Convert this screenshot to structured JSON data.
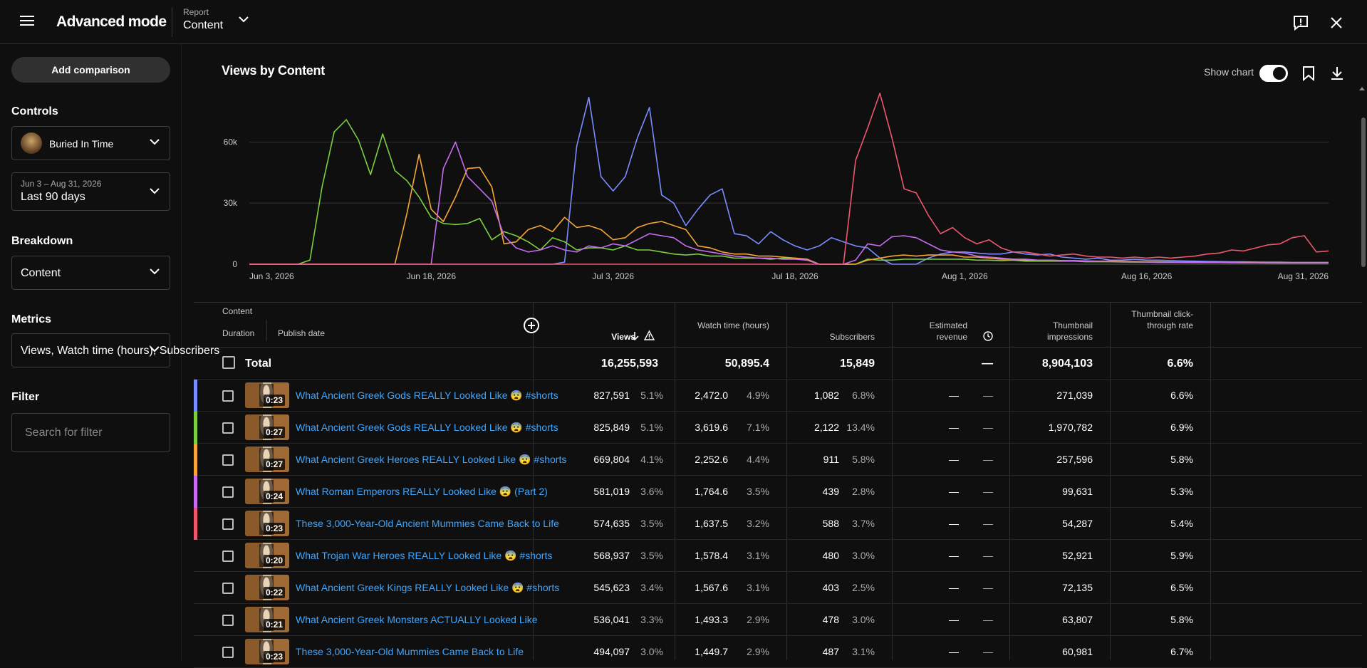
{
  "header": {
    "app_title": "Advanced mode",
    "report_label": "Report",
    "report_value": "Content"
  },
  "sidebar": {
    "add_comparison": "Add comparison",
    "controls_heading": "Controls",
    "channel": "Buried In Time",
    "date_range_small": "Jun 3 – Aug 31, 2026",
    "date_range": "Last 90 days",
    "breakdown_heading": "Breakdown",
    "breakdown": "Content",
    "metrics_heading": "Metrics",
    "metrics": "Views, Watch time (hours), Subscribers",
    "filter_heading": "Filter",
    "filter_placeholder": "Search for filter"
  },
  "chart": {
    "title": "Views by Content",
    "show_chart_label": "Show chart"
  },
  "chart_data": {
    "type": "line",
    "title": "Views by Content",
    "ylim": [
      0,
      85000
    ],
    "yticks": [
      "0",
      "30k",
      "60k"
    ],
    "ytick_values": [
      0,
      30000,
      60000
    ],
    "xtick_labels": [
      "Jun 3, 2026",
      "Jun 18, 2026",
      "Jul 3, 2026",
      "Jul 18, 2026",
      "Aug 1, 2026",
      "Aug 16, 2026",
      "Aug 31, 2026"
    ],
    "xtick_index": [
      0,
      15,
      30,
      45,
      59,
      74,
      89
    ],
    "n_points": 90,
    "grid": true,
    "series": [
      {
        "color": "#7a8cff",
        "values": [
          0,
          0,
          0,
          0,
          0,
          0,
          0,
          0,
          0,
          0,
          0,
          0,
          0,
          0,
          0,
          0,
          0,
          0,
          0,
          0,
          0,
          0,
          0,
          0,
          0,
          0,
          1000,
          58000,
          82000,
          43000,
          36000,
          43000,
          62000,
          77000,
          34000,
          30000,
          19000,
          27000,
          34000,
          37000,
          15000,
          14000,
          10000,
          16000,
          12000,
          9000,
          7000,
          9000,
          13000,
          11000,
          9000,
          8000,
          3000,
          0,
          0,
          0,
          3000,
          5000,
          6000,
          6000,
          5500,
          5000,
          5000,
          6000,
          5000,
          4500,
          5000,
          3500,
          3000,
          2500,
          3000,
          2000,
          2000,
          2500,
          2000,
          2000,
          1800,
          1600,
          1500,
          1400,
          1300,
          1200,
          1200,
          1100,
          1000,
          1000,
          900,
          900,
          900,
          900
        ]
      },
      {
        "color": "#7ccf3f",
        "values": [
          0,
          0,
          0,
          0,
          0,
          2000,
          38000,
          65000,
          71000,
          61000,
          44000,
          64000,
          46000,
          41000,
          33000,
          23000,
          20000,
          19500,
          20000,
          22500,
          12000,
          16000,
          14000,
          11000,
          7000,
          13000,
          11000,
          7000,
          8000,
          8000,
          7000,
          9000,
          7000,
          7000,
          6000,
          5000,
          4500,
          5000,
          4000,
          4000,
          3000,
          3000,
          3000,
          2500,
          3000,
          3000,
          2000,
          0,
          0,
          0,
          0,
          2500,
          2000,
          2000,
          2500,
          2500,
          2500,
          2500,
          2500,
          2500,
          2000,
          2000,
          1800,
          2000,
          1500,
          1500,
          1500,
          1500,
          1500,
          1200,
          1200,
          1200,
          1100,
          1000,
          1000,
          900,
          900,
          900,
          800,
          800,
          800,
          700,
          700,
          700,
          600,
          600,
          600,
          600,
          600,
          600
        ]
      },
      {
        "color": "#f6a635",
        "values": [
          0,
          0,
          0,
          0,
          0,
          0,
          0,
          0,
          0,
          0,
          0,
          0,
          0,
          25000,
          54000,
          27000,
          21000,
          33000,
          47000,
          47500,
          38000,
          10000,
          11000,
          17000,
          19000,
          16000,
          23000,
          18000,
          19000,
          17000,
          12000,
          13000,
          18000,
          20000,
          21000,
          19000,
          17000,
          9000,
          8000,
          6000,
          5000,
          5000,
          4000,
          4000,
          3500,
          3000,
          2500,
          0,
          0,
          0,
          0,
          2000,
          3000,
          4000,
          4500,
          4000,
          4500,
          4500,
          4500,
          3500,
          3500,
          3000,
          2500,
          2500,
          2000,
          2000,
          2000,
          1800,
          1800,
          1600,
          1500,
          1500,
          1400,
          1400,
          1200,
          1200,
          1100,
          1000,
          1000,
          900,
          900,
          800,
          800,
          800,
          700,
          700,
          700,
          700,
          700,
          700
        ]
      },
      {
        "color": "#c76cf0",
        "values": [
          0,
          0,
          0,
          0,
          0,
          0,
          0,
          0,
          0,
          0,
          0,
          0,
          0,
          0,
          0,
          0,
          47000,
          60000,
          43000,
          37000,
          31000,
          14000,
          8000,
          6000,
          7000,
          9000,
          7000,
          6000,
          9000,
          8000,
          10000,
          9000,
          12000,
          15000,
          14000,
          13000,
          9000,
          7000,
          6000,
          5000,
          4000,
          3500,
          3000,
          3000,
          2500,
          2500,
          2000,
          0,
          0,
          0,
          2000,
          10000,
          9000,
          13500,
          14000,
          13000,
          10000,
          7000,
          6000,
          5500,
          4000,
          3500,
          3000,
          2500,
          2500,
          2000,
          2000,
          1800,
          1600,
          1500,
          1400,
          1300,
          1200,
          1200,
          1100,
          1000,
          1000,
          900,
          900,
          800,
          800,
          800,
          700,
          700,
          700,
          600,
          600,
          600,
          600,
          600
        ]
      },
      {
        "color": "#f0576d",
        "values": [
          0,
          0,
          0,
          0,
          0,
          0,
          0,
          0,
          0,
          0,
          0,
          0,
          0,
          0,
          0,
          0,
          0,
          0,
          0,
          0,
          0,
          0,
          0,
          0,
          0,
          0,
          0,
          0,
          0,
          0,
          0,
          0,
          0,
          0,
          0,
          0,
          0,
          0,
          0,
          0,
          0,
          0,
          0,
          0,
          0,
          0,
          0,
          0,
          0,
          0,
          51000,
          67000,
          84000,
          62000,
          37000,
          35000,
          24000,
          15000,
          18000,
          13000,
          10000,
          12000,
          8000,
          6000,
          6000,
          5000,
          4000,
          4500,
          5000,
          4000,
          3500,
          3500,
          3000,
          3500,
          3000,
          3500,
          3000,
          3500,
          4000,
          5000,
          5500,
          7000,
          6500,
          8000,
          9500,
          10000,
          13000,
          14000,
          6000,
          6500
        ]
      }
    ]
  },
  "table": {
    "headers": {
      "content": "Content",
      "duration": "Duration",
      "publish_date": "Publish date",
      "views": "Views",
      "watch_time": "Watch time (hours)",
      "subscribers": "Subscribers",
      "revenue": "Estimated revenue",
      "impressions": "Thumbnail impressions",
      "ctr": "Thumbnail click-through rate"
    },
    "total": {
      "label": "Total",
      "views": "16,255,593",
      "watch_time": "50,895.4",
      "subscribers": "15,849",
      "revenue": "—",
      "impressions": "8,904,103",
      "ctr": "6.6%"
    },
    "rows": [
      {
        "color": "#7a8cff",
        "duration": "0:23",
        "title": "What Ancient Greek Gods REALLY Looked Like 😨 #shorts",
        "views": "827,591",
        "views_pct": "5.1%",
        "watch": "2,472.0",
        "watch_pct": "4.9%",
        "subs": "1,082",
        "subs_pct": "6.8%",
        "rev": "—",
        "rev_pct": "—",
        "impr": "271,039",
        "ctr": "6.6%"
      },
      {
        "color": "#7ccf3f",
        "duration": "0:27",
        "title": "What Ancient Greek Gods REALLY Looked Like 😨 #shorts",
        "views": "825,849",
        "views_pct": "5.1%",
        "watch": "3,619.6",
        "watch_pct": "7.1%",
        "subs": "2,122",
        "subs_pct": "13.4%",
        "rev": "—",
        "rev_pct": "—",
        "impr": "1,970,782",
        "ctr": "6.9%"
      },
      {
        "color": "#f6a635",
        "duration": "0:27",
        "title": "What Ancient Greek Heroes REALLY Looked Like 😨 #shorts",
        "views": "669,804",
        "views_pct": "4.1%",
        "watch": "2,252.6",
        "watch_pct": "4.4%",
        "subs": "911",
        "subs_pct": "5.8%",
        "rev": "—",
        "rev_pct": "—",
        "impr": "257,596",
        "ctr": "5.8%"
      },
      {
        "color": "#c76cf0",
        "duration": "0:24",
        "title": "What Roman Emperors REALLY Looked Like 😨 (Part 2)",
        "views": "581,019",
        "views_pct": "3.6%",
        "watch": "1,764.6",
        "watch_pct": "3.5%",
        "subs": "439",
        "subs_pct": "2.8%",
        "rev": "—",
        "rev_pct": "—",
        "impr": "99,631",
        "ctr": "5.3%"
      },
      {
        "color": "#f0576d",
        "duration": "0:23",
        "title": "These 3,000-Year-Old Ancient Mummies Came Back to Life",
        "views": "574,635",
        "views_pct": "3.5%",
        "watch": "1,637.5",
        "watch_pct": "3.2%",
        "subs": "588",
        "subs_pct": "3.7%",
        "rev": "—",
        "rev_pct": "—",
        "impr": "54,287",
        "ctr": "5.4%"
      },
      {
        "color": "",
        "duration": "0:20",
        "title": "What Trojan War Heroes REALLY Looked Like 😨 #shorts",
        "views": "568,937",
        "views_pct": "3.5%",
        "watch": "1,578.4",
        "watch_pct": "3.1%",
        "subs": "480",
        "subs_pct": "3.0%",
        "rev": "—",
        "rev_pct": "—",
        "impr": "52,921",
        "ctr": "5.9%"
      },
      {
        "color": "",
        "duration": "0:22",
        "title": "What Ancient Greek Kings REALLY Looked Like 😨 #shorts",
        "views": "545,623",
        "views_pct": "3.4%",
        "watch": "1,567.6",
        "watch_pct": "3.1%",
        "subs": "403",
        "subs_pct": "2.5%",
        "rev": "—",
        "rev_pct": "—",
        "impr": "72,135",
        "ctr": "6.5%"
      },
      {
        "color": "",
        "duration": "0:21",
        "title": "What Ancient Greek Monsters ACTUALLY Looked Like",
        "views": "536,041",
        "views_pct": "3.3%",
        "watch": "1,493.3",
        "watch_pct": "2.9%",
        "subs": "478",
        "subs_pct": "3.0%",
        "rev": "—",
        "rev_pct": "—",
        "impr": "63,807",
        "ctr": "5.8%"
      },
      {
        "color": "",
        "duration": "0:23",
        "title": "These 3,000-Year-Old Mummies Came Back to Life",
        "views": "494,097",
        "views_pct": "3.0%",
        "watch": "1,449.7",
        "watch_pct": "2.9%",
        "subs": "487",
        "subs_pct": "3.1%",
        "rev": "—",
        "rev_pct": "—",
        "impr": "60,981",
        "ctr": "6.7%"
      }
    ]
  }
}
